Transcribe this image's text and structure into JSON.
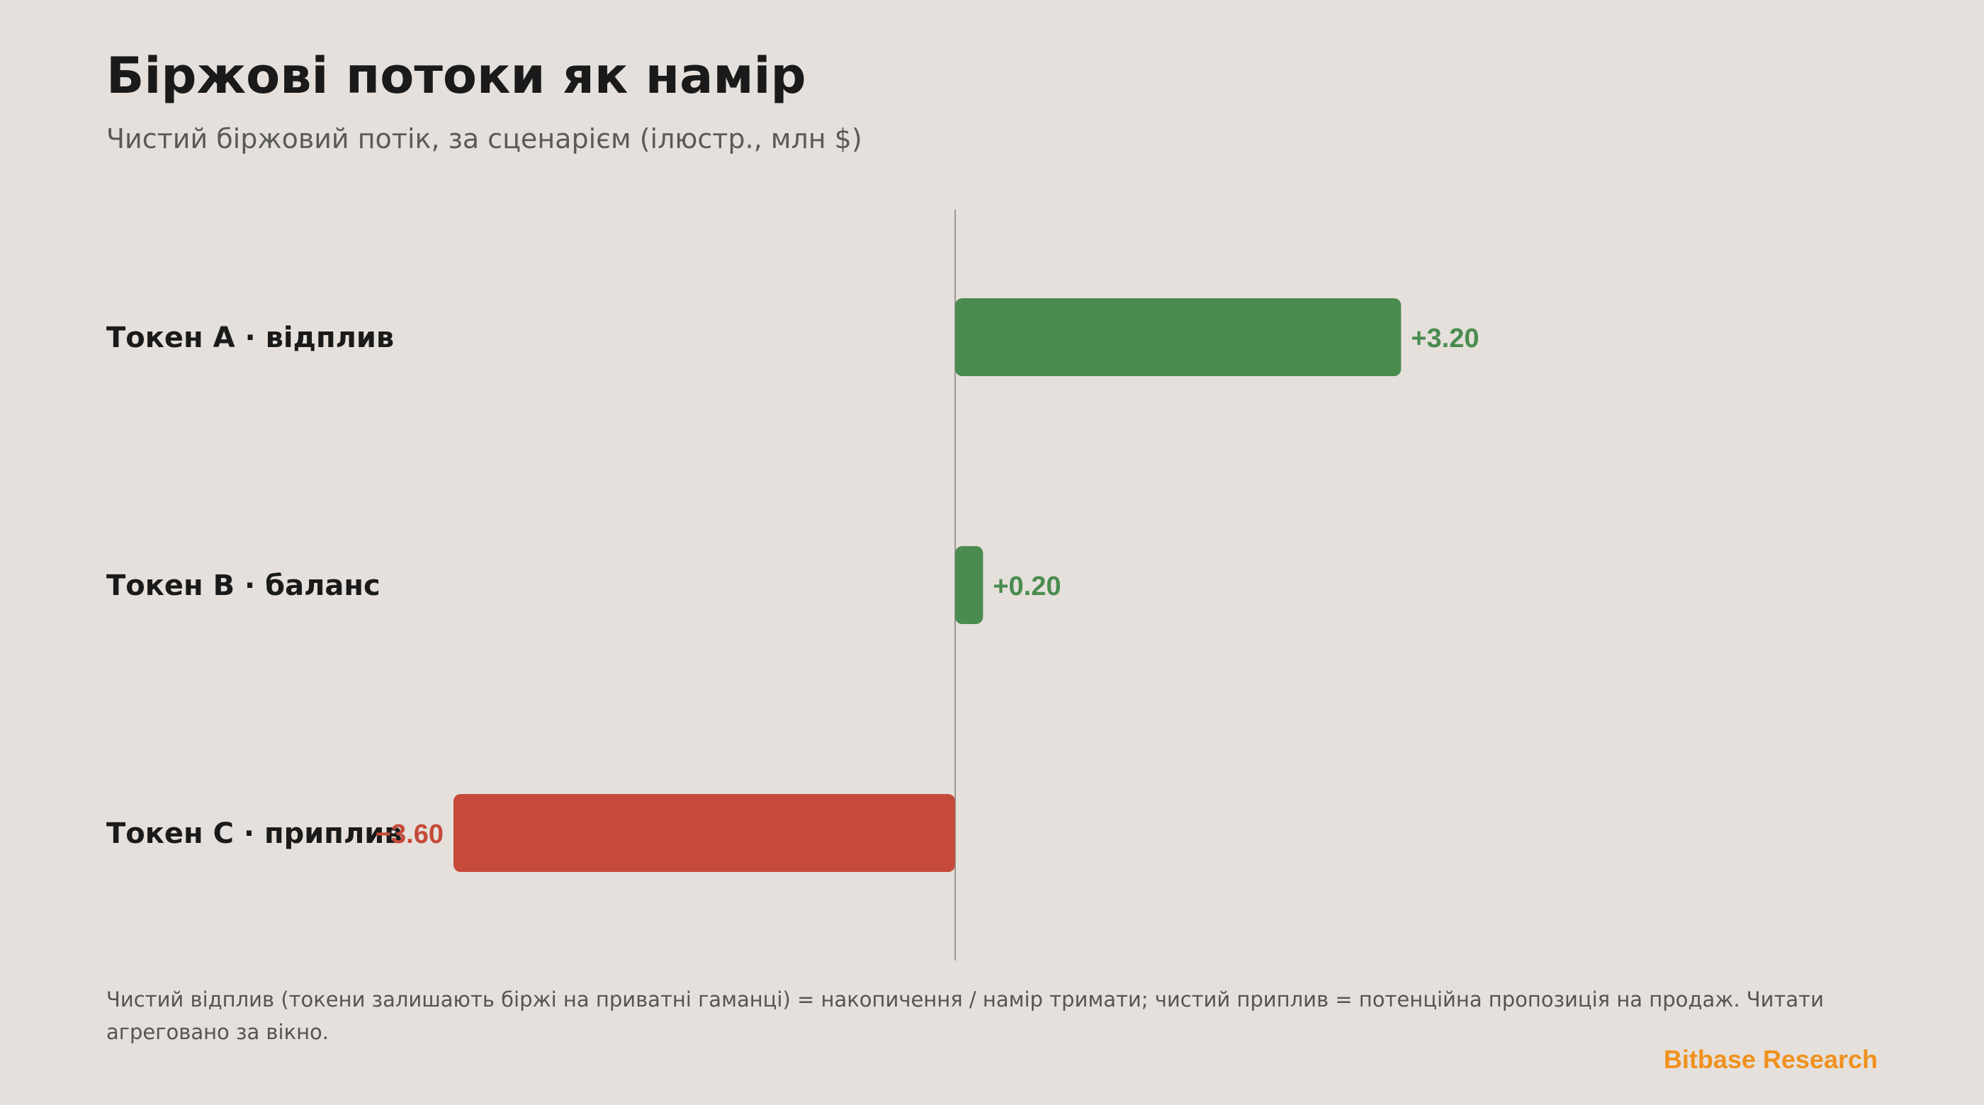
{
  "header": {
    "title": "Біржові потоки як намір",
    "subtitle": "Чистий біржовий потік, за сценарієм (ілюстр., млн $)"
  },
  "chart_data": {
    "type": "bar",
    "orientation": "horizontal",
    "categories": [
      "Токен A · відплив",
      "Токен B · баланс",
      "Токен C · приплив"
    ],
    "values": [
      3.2,
      0.2,
      -3.6
    ],
    "value_labels": [
      "+3.20",
      "+0.20",
      "−3.60"
    ],
    "xlim": [
      -3.6,
      6.85
    ],
    "grid": false,
    "legend": "none",
    "colors": {
      "positive": "#4a8c4f",
      "negative": "#c64a3a",
      "baseline": "#9a958f"
    }
  },
  "footnote": "Чистий відплив (токени залишають біржі на приватні гаманці) = накопичення / намір тримати; чистий приплив = потенційна пропозиція на продаж. Читати агреговано за вікно.",
  "brand": "Bitbase Research"
}
